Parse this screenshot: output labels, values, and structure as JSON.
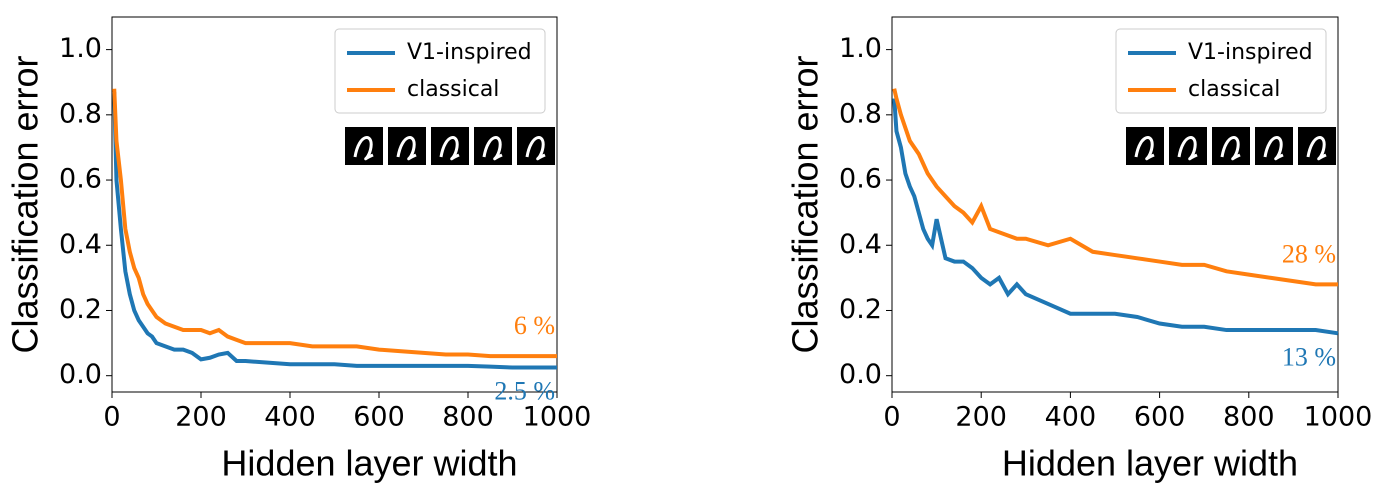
{
  "chart_data": [
    {
      "type": "line",
      "xlabel": "Hidden layer width",
      "ylabel": "Classification error",
      "x": [
        5,
        10,
        20,
        30,
        40,
        50,
        60,
        70,
        80,
        90,
        100,
        120,
        140,
        160,
        180,
        200,
        220,
        240,
        260,
        280,
        300,
        350,
        400,
        450,
        500,
        550,
        600,
        650,
        700,
        750,
        800,
        850,
        900,
        950,
        1000
      ],
      "series": [
        {
          "name": "V1-inspired",
          "color": "#1f77b4",
          "values": [
            0.87,
            0.6,
            0.45,
            0.32,
            0.25,
            0.2,
            0.17,
            0.15,
            0.13,
            0.12,
            0.1,
            0.09,
            0.08,
            0.08,
            0.07,
            0.05,
            0.055,
            0.065,
            0.07,
            0.045,
            0.045,
            0.04,
            0.035,
            0.035,
            0.035,
            0.03,
            0.03,
            0.03,
            0.03,
            0.03,
            0.03,
            0.028,
            0.025,
            0.025,
            0.025
          ]
        },
        {
          "name": "classical",
          "color": "#ff7f0e",
          "values": [
            0.88,
            0.72,
            0.6,
            0.45,
            0.38,
            0.33,
            0.3,
            0.25,
            0.22,
            0.2,
            0.18,
            0.16,
            0.15,
            0.14,
            0.14,
            0.14,
            0.13,
            0.14,
            0.12,
            0.11,
            0.1,
            0.1,
            0.1,
            0.09,
            0.09,
            0.09,
            0.08,
            0.075,
            0.07,
            0.065,
            0.065,
            0.06,
            0.06,
            0.06,
            0.06
          ]
        }
      ],
      "annotations": [
        {
          "text": "2.5 %",
          "color": "#1f77b4"
        },
        {
          "text": "6 %",
          "color": "#ff7f0e"
        }
      ],
      "xlim": [
        0,
        1000
      ],
      "xticks": [
        0,
        200,
        400,
        600,
        800,
        1000
      ],
      "ylim": [
        -0.05,
        1.1
      ],
      "yticks": [
        {
          "value": 0,
          "label": "0.0"
        },
        0.2,
        0.4,
        0.6,
        0.8,
        {
          "value": 1,
          "label": "1.0"
        }
      ],
      "legend": "upper right"
    },
    {
      "type": "line",
      "xlabel": "Hidden layer width",
      "ylabel": "Classification error",
      "x": [
        5,
        10,
        20,
        30,
        40,
        50,
        60,
        70,
        80,
        90,
        100,
        120,
        140,
        160,
        180,
        200,
        220,
        240,
        260,
        280,
        300,
        350,
        400,
        450,
        500,
        550,
        600,
        650,
        700,
        750,
        800,
        850,
        900,
        950,
        1000
      ],
      "series": [
        {
          "name": "V1-inspired",
          "color": "#1f77b4",
          "values": [
            0.85,
            0.75,
            0.7,
            0.62,
            0.58,
            0.55,
            0.5,
            0.45,
            0.42,
            0.4,
            0.48,
            0.36,
            0.35,
            0.35,
            0.33,
            0.3,
            0.28,
            0.3,
            0.25,
            0.28,
            0.25,
            0.22,
            0.19,
            0.19,
            0.19,
            0.18,
            0.16,
            0.15,
            0.15,
            0.14,
            0.14,
            0.14,
            0.14,
            0.14,
            0.13
          ]
        },
        {
          "name": "classical",
          "color": "#ff7f0e",
          "values": [
            0.88,
            0.85,
            0.8,
            0.76,
            0.72,
            0.7,
            0.68,
            0.65,
            0.62,
            0.6,
            0.58,
            0.55,
            0.52,
            0.5,
            0.47,
            0.52,
            0.45,
            0.44,
            0.43,
            0.42,
            0.42,
            0.4,
            0.42,
            0.38,
            0.37,
            0.36,
            0.35,
            0.34,
            0.34,
            0.32,
            0.31,
            0.3,
            0.29,
            0.28,
            0.28
          ]
        }
      ],
      "annotations": [
        {
          "text": "13 %",
          "color": "#1f77b4"
        },
        {
          "text": "28 %",
          "color": "#ff7f0e"
        }
      ],
      "xlim": [
        0,
        1000
      ],
      "xticks": [
        0,
        200,
        400,
        600,
        800,
        1000
      ],
      "ylim": [
        -0.05,
        1.1
      ],
      "yticks": [
        {
          "value": 0,
          "label": "0.0"
        },
        0.2,
        0.4,
        0.6,
        0.8,
        {
          "value": 1,
          "label": "1.0"
        }
      ],
      "legend": "upper right"
    }
  ]
}
